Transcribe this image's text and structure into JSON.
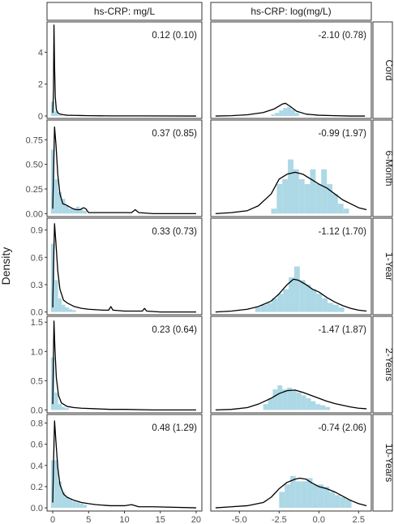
{
  "chart_data": {
    "type": "faceted-histogram-density",
    "ylabel": "Density",
    "xlabel": "",
    "colors": {
      "histogram": "#add8e6",
      "density": "#000000",
      "strip_fill": "#ffffff",
      "panel_border": "#333333"
    },
    "columns": [
      {
        "name": "hs-CRP: mg/L",
        "xlim": [
          -0.8,
          20.8
        ],
        "xticks": [
          0,
          5,
          10,
          15,
          20
        ]
      },
      {
        "name": "hs-CRP: log(mg/L)",
        "xlim": [
          -6.8,
          3.3
        ],
        "xticks": [
          -5.0,
          -2.5,
          0.0,
          2.5
        ],
        "xtick_labels": [
          "-5.0",
          "-2.5",
          "0.0",
          "2.5"
        ]
      }
    ],
    "rows": [
      {
        "name": "Cord",
        "ylim": [
          -0.15,
          5.9
        ],
        "yticks": [
          0,
          2,
          4
        ],
        "ytick_labels": [
          "0",
          "2",
          "4"
        ]
      },
      {
        "name": "6-Month",
        "ylim": [
          -0.03,
          0.95
        ],
        "yticks": [
          0.0,
          0.25,
          0.5,
          0.75
        ],
        "ytick_labels": [
          "0.00",
          "0.25",
          "0.50",
          "0.75"
        ]
      },
      {
        "name": "1-Year",
        "ylim": [
          -0.03,
          1.03
        ],
        "yticks": [
          0.0,
          0.3,
          0.6,
          0.9
        ],
        "ytick_labels": [
          "0.0",
          "0.3",
          "0.6",
          "0.9"
        ]
      },
      {
        "name": "2-Years",
        "ylim": [
          -0.05,
          1.6
        ],
        "yticks": [
          0.0,
          0.5,
          1.0,
          1.5
        ],
        "ytick_labels": [
          "0.0",
          "0.5",
          "1.0",
          "1.5"
        ]
      },
      {
        "name": "10-Years",
        "ylim": [
          -0.03,
          0.88
        ],
        "yticks": [
          0.0,
          0.2,
          0.4,
          0.6,
          0.8
        ],
        "ytick_labels": [
          "0.0",
          "0.2",
          "0.4",
          "0.6",
          "0.8"
        ]
      }
    ],
    "panels": [
      [
        {
          "annotation": "0.12 (0.10)",
          "hist": {
            "start": -0.25,
            "width": 0.5,
            "values": [
              0.9,
              0.3,
              0.05
            ]
          },
          "density": [
            [
              0.0,
              0.2
            ],
            [
              0.1,
              1.5
            ],
            [
              0.17,
              5.7
            ],
            [
              0.25,
              3.2
            ],
            [
              0.35,
              1.2
            ],
            [
              0.5,
              0.4
            ],
            [
              0.7,
              0.2
            ],
            [
              1.0,
              0.12
            ],
            [
              1.5,
              0.08
            ],
            [
              2,
              0.05
            ],
            [
              3,
              0.04
            ],
            [
              4,
              0.03
            ],
            [
              5,
              0.02
            ],
            [
              8,
              0.01
            ],
            [
              12,
              0.01
            ],
            [
              20,
              0.0
            ]
          ]
        },
        {
          "annotation": "-2.10 (0.78)",
          "hist": {
            "start": -3.0,
            "width": 0.25,
            "values": [
              0.1,
              0.2,
              0.35,
              0.5,
              0.55,
              0.4,
              0.2
            ]
          },
          "density": [
            [
              -6.5,
              0.0
            ],
            [
              -5.5,
              0.02
            ],
            [
              -4.5,
              0.08
            ],
            [
              -3.5,
              0.22
            ],
            [
              -2.8,
              0.45
            ],
            [
              -2.3,
              0.75
            ],
            [
              -2.1,
              0.8
            ],
            [
              -1.8,
              0.6
            ],
            [
              -1.4,
              0.3
            ],
            [
              -0.8,
              0.12
            ],
            [
              0,
              0.05
            ],
            [
              1,
              0.02
            ],
            [
              2,
              0.0
            ],
            [
              2.9,
              0.0
            ]
          ]
        }
      ],
      [
        {
          "annotation": "0.37 (0.85)",
          "hist": {
            "start": -0.25,
            "width": 0.5,
            "values": [
              0.65,
              0.35,
              0.22,
              0.15,
              0.08,
              0.05,
              0.05,
              0.07,
              0.04,
              0.03
            ]
          },
          "density": [
            [
              0,
              0.05
            ],
            [
              0.1,
              0.4
            ],
            [
              0.25,
              0.88
            ],
            [
              0.45,
              0.7
            ],
            [
              0.7,
              0.4
            ],
            [
              1.0,
              0.2
            ],
            [
              1.4,
              0.1
            ],
            [
              1.8,
              0.09
            ],
            [
              2.3,
              0.07
            ],
            [
              2.8,
              0.05
            ],
            [
              3.3,
              0.04
            ],
            [
              3.8,
              0.04
            ],
            [
              4.3,
              0.06
            ],
            [
              4.6,
              0.05
            ],
            [
              5.0,
              0.01
            ],
            [
              6,
              0.01
            ],
            [
              9,
              0.01
            ],
            [
              11.0,
              0.01
            ],
            [
              11.5,
              0.04
            ],
            [
              12.0,
              0.01
            ],
            [
              14,
              0.0
            ],
            [
              20,
              0.0
            ]
          ]
        },
        {
          "annotation": "-0.99 (1.97)",
          "hist": {
            "start": -3.0,
            "width": 0.35,
            "values": [
              0.05,
              0.3,
              0.35,
              0.55,
              0.45,
              0.35,
              0.3,
              0.45,
              0.3,
              0.45,
              0.3,
              0.2,
              0.1,
              0.05
            ]
          },
          "density": [
            [
              -6.5,
              0.0
            ],
            [
              -5.5,
              0.01
            ],
            [
              -4.5,
              0.03
            ],
            [
              -3.8,
              0.08
            ],
            [
              -3.0,
              0.2
            ],
            [
              -2.5,
              0.35
            ],
            [
              -2.0,
              0.4
            ],
            [
              -1.5,
              0.42
            ],
            [
              -1.0,
              0.4
            ],
            [
              -0.5,
              0.35
            ],
            [
              0.0,
              0.3
            ],
            [
              0.5,
              0.26
            ],
            [
              1.0,
              0.2
            ],
            [
              1.5,
              0.14
            ],
            [
              2.0,
              0.1
            ],
            [
              2.5,
              0.06
            ],
            [
              3.0,
              0.04
            ]
          ]
        }
      ],
      [
        {
          "annotation": "0.33 (0.73)",
          "hist": {
            "start": -0.25,
            "width": 0.5,
            "values": [
              0.75,
              0.35,
              0.15,
              0.08,
              0.05,
              0.03,
              0.02
            ]
          },
          "density": [
            [
              0,
              0.05
            ],
            [
              0.1,
              0.5
            ],
            [
              0.25,
              0.97
            ],
            [
              0.45,
              0.75
            ],
            [
              0.7,
              0.45
            ],
            [
              1.0,
              0.25
            ],
            [
              1.5,
              0.13
            ],
            [
              2,
              0.1
            ],
            [
              3,
              0.06
            ],
            [
              4,
              0.04
            ],
            [
              5,
              0.03
            ],
            [
              7,
              0.02
            ],
            [
              7.8,
              0.02
            ],
            [
              8.1,
              0.06
            ],
            [
              8.4,
              0.02
            ],
            [
              10,
              0.01
            ],
            [
              12.5,
              0.01
            ],
            [
              12.8,
              0.04
            ],
            [
              13.1,
              0.01
            ],
            [
              15,
              0.0
            ],
            [
              20,
              0.0
            ]
          ]
        },
        {
          "annotation": "-1.12 (1.70)",
          "hist": {
            "start": -4.0,
            "width": 0.35,
            "values": [
              0.05,
              0.08,
              0.1,
              0.15,
              0.2,
              0.25,
              0.38,
              0.5,
              0.35,
              0.3,
              0.25,
              0.2,
              0.15,
              0.1,
              0.08,
              0.05
            ]
          },
          "density": [
            [
              -6.5,
              0.0
            ],
            [
              -5.5,
              0.01
            ],
            [
              -4.5,
              0.03
            ],
            [
              -3.8,
              0.06
            ],
            [
              -3.0,
              0.12
            ],
            [
              -2.5,
              0.2
            ],
            [
              -2.0,
              0.3
            ],
            [
              -1.6,
              0.36
            ],
            [
              -1.3,
              0.35
            ],
            [
              -0.8,
              0.3
            ],
            [
              -0.4,
              0.25
            ],
            [
              0.0,
              0.22
            ],
            [
              0.5,
              0.16
            ],
            [
              1.0,
              0.11
            ],
            [
              1.5,
              0.07
            ],
            [
              2.0,
              0.04
            ],
            [
              2.5,
              0.02
            ],
            [
              3.0,
              0.01
            ]
          ]
        }
      ],
      [
        {
          "annotation": "0.23 (0.64)",
          "hist": {
            "start": -0.25,
            "width": 0.5,
            "values": [
              0.9,
              0.3,
              0.1,
              0.05,
              0.03
            ]
          },
          "density": [
            [
              0,
              0.1
            ],
            [
              0.08,
              0.8
            ],
            [
              0.17,
              1.52
            ],
            [
              0.3,
              1.05
            ],
            [
              0.5,
              0.55
            ],
            [
              0.8,
              0.25
            ],
            [
              1.2,
              0.12
            ],
            [
              2,
              0.06
            ],
            [
              3,
              0.04
            ],
            [
              4,
              0.03
            ],
            [
              6,
              0.02
            ],
            [
              8,
              0.01
            ],
            [
              10,
              0.01
            ],
            [
              14,
              0.0
            ],
            [
              20,
              0.0
            ]
          ]
        },
        {
          "annotation": "-1.47 (1.87)",
          "hist": {
            "start": -3.5,
            "width": 0.3,
            "values": [
              0.1,
              0.2,
              0.35,
              0.42,
              0.35,
              0.38,
              0.33,
              0.3,
              0.25,
              0.2,
              0.15,
              0.1,
              0.08,
              0.05
            ]
          },
          "density": [
            [
              -6.5,
              0.0
            ],
            [
              -5.5,
              0.01
            ],
            [
              -4.5,
              0.04
            ],
            [
              -3.8,
              0.1
            ],
            [
              -3.0,
              0.2
            ],
            [
              -2.5,
              0.28
            ],
            [
              -2.0,
              0.33
            ],
            [
              -1.5,
              0.34
            ],
            [
              -1.0,
              0.3
            ],
            [
              -0.5,
              0.25
            ],
            [
              0.0,
              0.2
            ],
            [
              0.5,
              0.15
            ],
            [
              1.0,
              0.11
            ],
            [
              1.5,
              0.08
            ],
            [
              2.0,
              0.05
            ],
            [
              2.5,
              0.03
            ],
            [
              3.0,
              0.02
            ]
          ]
        }
      ],
      [
        {
          "annotation": "0.48 (1.29)",
          "hist": {
            "start": -0.25,
            "width": 0.5,
            "values": [
              0.45,
              0.45,
              0.25,
              0.15,
              0.1,
              0.08,
              0.06,
              0.05,
              0.04,
              0.03
            ]
          },
          "density": [
            [
              0,
              0.05
            ],
            [
              0.1,
              0.4
            ],
            [
              0.25,
              0.82
            ],
            [
              0.45,
              0.62
            ],
            [
              0.7,
              0.38
            ],
            [
              1.0,
              0.22
            ],
            [
              1.5,
              0.13
            ],
            [
              2,
              0.1
            ],
            [
              3,
              0.07
            ],
            [
              4,
              0.05
            ],
            [
              5,
              0.04
            ],
            [
              6,
              0.03
            ],
            [
              8,
              0.02
            ],
            [
              10,
              0.02
            ],
            [
              11,
              0.03
            ],
            [
              12,
              0.01
            ],
            [
              14,
              0.01
            ],
            [
              20,
              0.0
            ]
          ]
        },
        {
          "annotation": "-0.74 (2.06)",
          "hist": {
            "start": -2.5,
            "width": 0.35,
            "values": [
              0.15,
              0.22,
              0.3,
              0.25,
              0.25,
              0.28,
              0.22,
              0.22,
              0.2,
              0.15,
              0.12,
              0.1,
              0.08
            ]
          },
          "density": [
            [
              -6.5,
              0.0
            ],
            [
              -5.5,
              0.01
            ],
            [
              -4.5,
              0.02
            ],
            [
              -3.5,
              0.05
            ],
            [
              -3.0,
              0.1
            ],
            [
              -2.5,
              0.18
            ],
            [
              -2.0,
              0.24
            ],
            [
              -1.5,
              0.27
            ],
            [
              -1.2,
              0.28
            ],
            [
              -0.8,
              0.27
            ],
            [
              -0.5,
              0.24
            ],
            [
              0.0,
              0.2
            ],
            [
              0.5,
              0.18
            ],
            [
              1.0,
              0.15
            ],
            [
              1.5,
              0.11
            ],
            [
              2.0,
              0.07
            ],
            [
              2.5,
              0.04
            ],
            [
              3.0,
              0.02
            ]
          ]
        }
      ]
    ]
  }
}
